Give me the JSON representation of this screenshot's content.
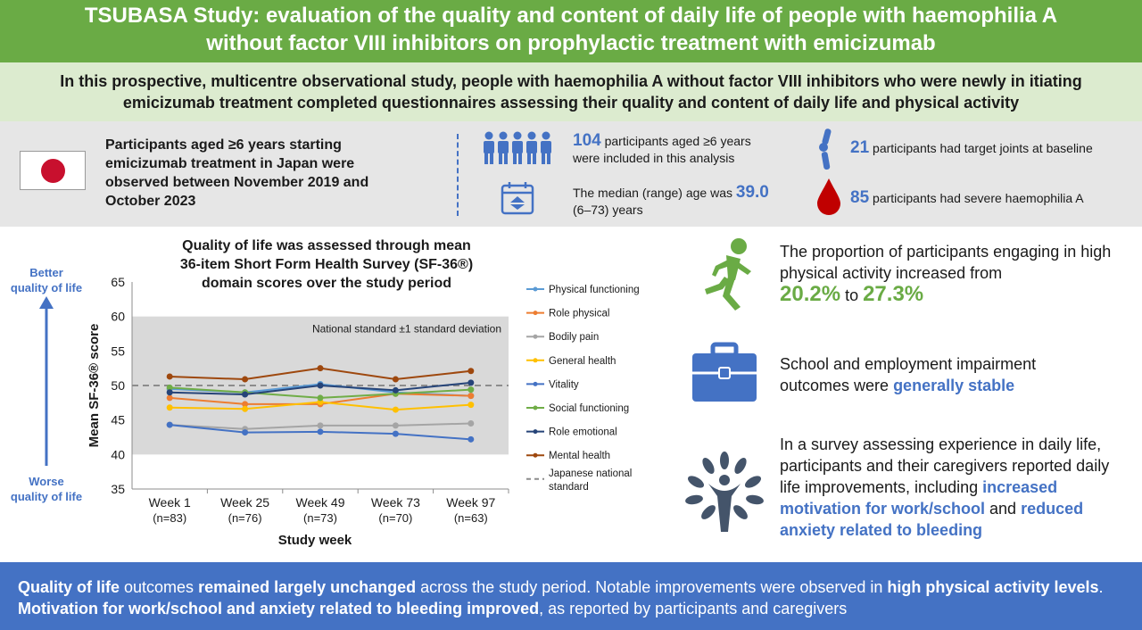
{
  "header": {
    "title_line1": "TSUBASA Study: evaluation of the quality and content of daily life of people with haemophilia A",
    "title_line2": "without factor VIII inhibitors on prophylactic treatment with emicizumab",
    "subtitle_line1": "In this prospective, multicentre observational study, people with haemophilia A without factor VIII inhibitors who were newly in itiating",
    "subtitle_line2": "emicizumab treatment completed questionnaires assessing their quality and content of daily life and physical activity"
  },
  "info": {
    "description": "Participants aged ≥6 years starting emicizumab treatment in Japan were observed between November 2019 and October 2023",
    "participants_value": "104",
    "participants_text_a": " participants aged ≥6 years",
    "participants_text_b": "were included in this analysis",
    "age_text": "The median (range) age was ",
    "age_value": "39.0",
    "age_range": "(6–73) years",
    "target_joints_value": "21",
    "target_joints_text": " participants had target joints at baseline",
    "severe_value": "85",
    "severe_text": " participants had severe haemophilia A",
    "icons": [
      "people-icon",
      "calendar-icon",
      "joint-icon",
      "blood-drop-icon",
      "japan-flag-icon"
    ]
  },
  "chart_data": {
    "type": "line",
    "title_lines": [
      "Quality of life was assessed through mean",
      "36-item Short Form Health Survey (SF-36®)",
      "domain scores over the study period"
    ],
    "ylabel": "Mean SF-36® score",
    "xlabel": "Study week",
    "ylim": [
      35,
      65
    ],
    "yticks": [
      35,
      40,
      45,
      50,
      55,
      60,
      65
    ],
    "categories": [
      "Week 1",
      "Week 25",
      "Week 49",
      "Week 73",
      "Week 97"
    ],
    "category_sublabels": [
      "(n=83)",
      "(n=76)",
      "(n=73)",
      "(n=70)",
      "(n=63)"
    ],
    "band": {
      "range": [
        40,
        60
      ],
      "label": "National standard ±1 standard deviation"
    },
    "reference": {
      "name": "Japanese national standard",
      "value": 50
    },
    "better_label": [
      "Better",
      "quality of life"
    ],
    "worse_label": [
      "Worse",
      "quality of life"
    ],
    "grid": false,
    "legend_position": "right",
    "series": [
      {
        "name": "Physical functioning",
        "color": "#5b9bd5",
        "values": [
          49.5,
          49.0,
          50.2,
          49.0,
          48.5
        ]
      },
      {
        "name": "Role physical",
        "color": "#ed7d31",
        "values": [
          48.2,
          47.3,
          47.3,
          48.8,
          48.5
        ]
      },
      {
        "name": "Bodily pain",
        "color": "#a5a5a5",
        "values": [
          44.3,
          43.7,
          44.2,
          44.2,
          44.5
        ]
      },
      {
        "name": "General health",
        "color": "#ffc000",
        "values": [
          46.8,
          46.6,
          47.6,
          46.5,
          47.2
        ]
      },
      {
        "name": "Vitality",
        "color": "#4472c4",
        "values": [
          44.3,
          43.2,
          43.3,
          43.0,
          42.2
        ]
      },
      {
        "name": "Social functioning",
        "color": "#70ad47",
        "values": [
          49.7,
          49.0,
          48.2,
          48.8,
          49.4
        ]
      },
      {
        "name": "Role emotional",
        "color": "#264478",
        "values": [
          49.0,
          48.7,
          50.0,
          49.3,
          50.4
        ]
      },
      {
        "name": "Mental health",
        "color": "#9e480e",
        "values": [
          51.3,
          50.9,
          52.5,
          50.9,
          52.1
        ]
      }
    ]
  },
  "right": {
    "activity_text": "The proportion of participants engaging in high physical activity increased from",
    "activity_from": "20.2%",
    "activity_to_word": " to ",
    "activity_to": "27.3%",
    "school_text": "School and employment impairment outcomes were ",
    "school_highlight": "generally stable",
    "survey_text": "In a survey assessing experience in daily life, participants and their caregivers reported daily life improvements, including ",
    "survey_highlight1": "increased motivation for work/school",
    "survey_and": " and ",
    "survey_highlight2": "reduced anxiety related to bleeding",
    "colors": {
      "green": "#6aab45",
      "blue": "#4472c4",
      "dark_blue": "#44546a"
    }
  },
  "footer": {
    "p1_bold": "Quality of life",
    "p1_text": " outcomes ",
    "p2_bold": "remained largely unchanged",
    "p2_text": " across the study period. Notable improvements were observed in ",
    "p3_bold": "high physical activity levels",
    "p3_text": ". ",
    "p4_bold": "Motivation for work/school and anxiety related to bleeding improved",
    "p4_text": ", as reported by participants and caregivers"
  }
}
